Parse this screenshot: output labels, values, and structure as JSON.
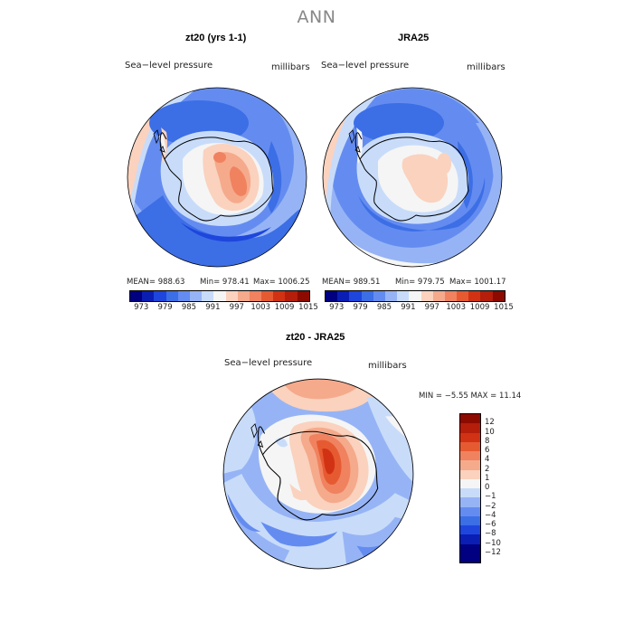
{
  "figure": {
    "title": "ANN",
    "panels": [
      {
        "title": "zt20 (yrs 1-1)",
        "left_label": "Sea−level pressure",
        "right_label": "millibars",
        "mean_text": "MEAN= 988.63",
        "min_text": "Min= 978.41",
        "max_text": "Max= 1006.25",
        "colorbar_ticks": [
          "973",
          "979",
          "985",
          "991",
          "997",
          "1003",
          "1009",
          "1015"
        ]
      },
      {
        "title": "JRA25",
        "left_label": "Sea−level pressure",
        "right_label": "millibars",
        "mean_text": "MEAN= 989.51",
        "min_text": "Min= 979.75",
        "max_text": "Max= 1001.17",
        "colorbar_ticks": [
          "973",
          "979",
          "985",
          "991",
          "997",
          "1003",
          "1009",
          "1015"
        ]
      },
      {
        "title": "zt20 - JRA25",
        "left_label": "Sea−level pressure",
        "right_label": "millibars",
        "minmax_text": "MIN =  −5.55 MAX =  11.14",
        "diff_labels": [
          "12",
          "10",
          "8",
          "6",
          "4",
          "2",
          "1",
          "0",
          "−1",
          "−2",
          "−4",
          "−6",
          "−8",
          "−10",
          "−12"
        ]
      }
    ]
  },
  "colors": {
    "abs_scale": [
      "#000080",
      "#0a1eb4",
      "#1e46dc",
      "#3c6ee6",
      "#648cf0",
      "#96b4f5",
      "#c8dcfa",
      "#f5f5f5",
      "#fad2be",
      "#f5aa8c",
      "#f0825f",
      "#e65a32",
      "#d23214",
      "#b41e0a",
      "#8c0a00"
    ],
    "diff_scale": [
      "#000080",
      "#0a1eb4",
      "#1e46dc",
      "#3c6ee6",
      "#648cf0",
      "#96b4f5",
      "#c8dcfa",
      "#f5f5f5",
      "#fad2be",
      "#f5aa8c",
      "#f0825f",
      "#e65a32",
      "#d23214",
      "#b41e0a",
      "#8c0a00"
    ]
  }
}
